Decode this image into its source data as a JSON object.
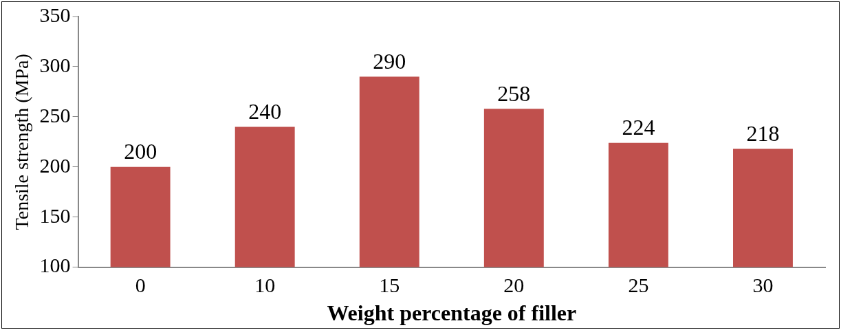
{
  "chart_data": {
    "type": "bar",
    "xlabel": "Weight percentage of filler",
    "ylabel": "Tensile strength (MPa)",
    "categories": [
      "0",
      "10",
      "15",
      "20",
      "25",
      "30"
    ],
    "values": [
      200,
      240,
      290,
      258,
      224,
      218
    ],
    "color": "#c0504d",
    "ylim": [
      100,
      350
    ],
    "yticks": [
      100,
      150,
      200,
      250,
      300,
      350
    ],
    "grid": false,
    "data_labels": true,
    "legend": false
  }
}
